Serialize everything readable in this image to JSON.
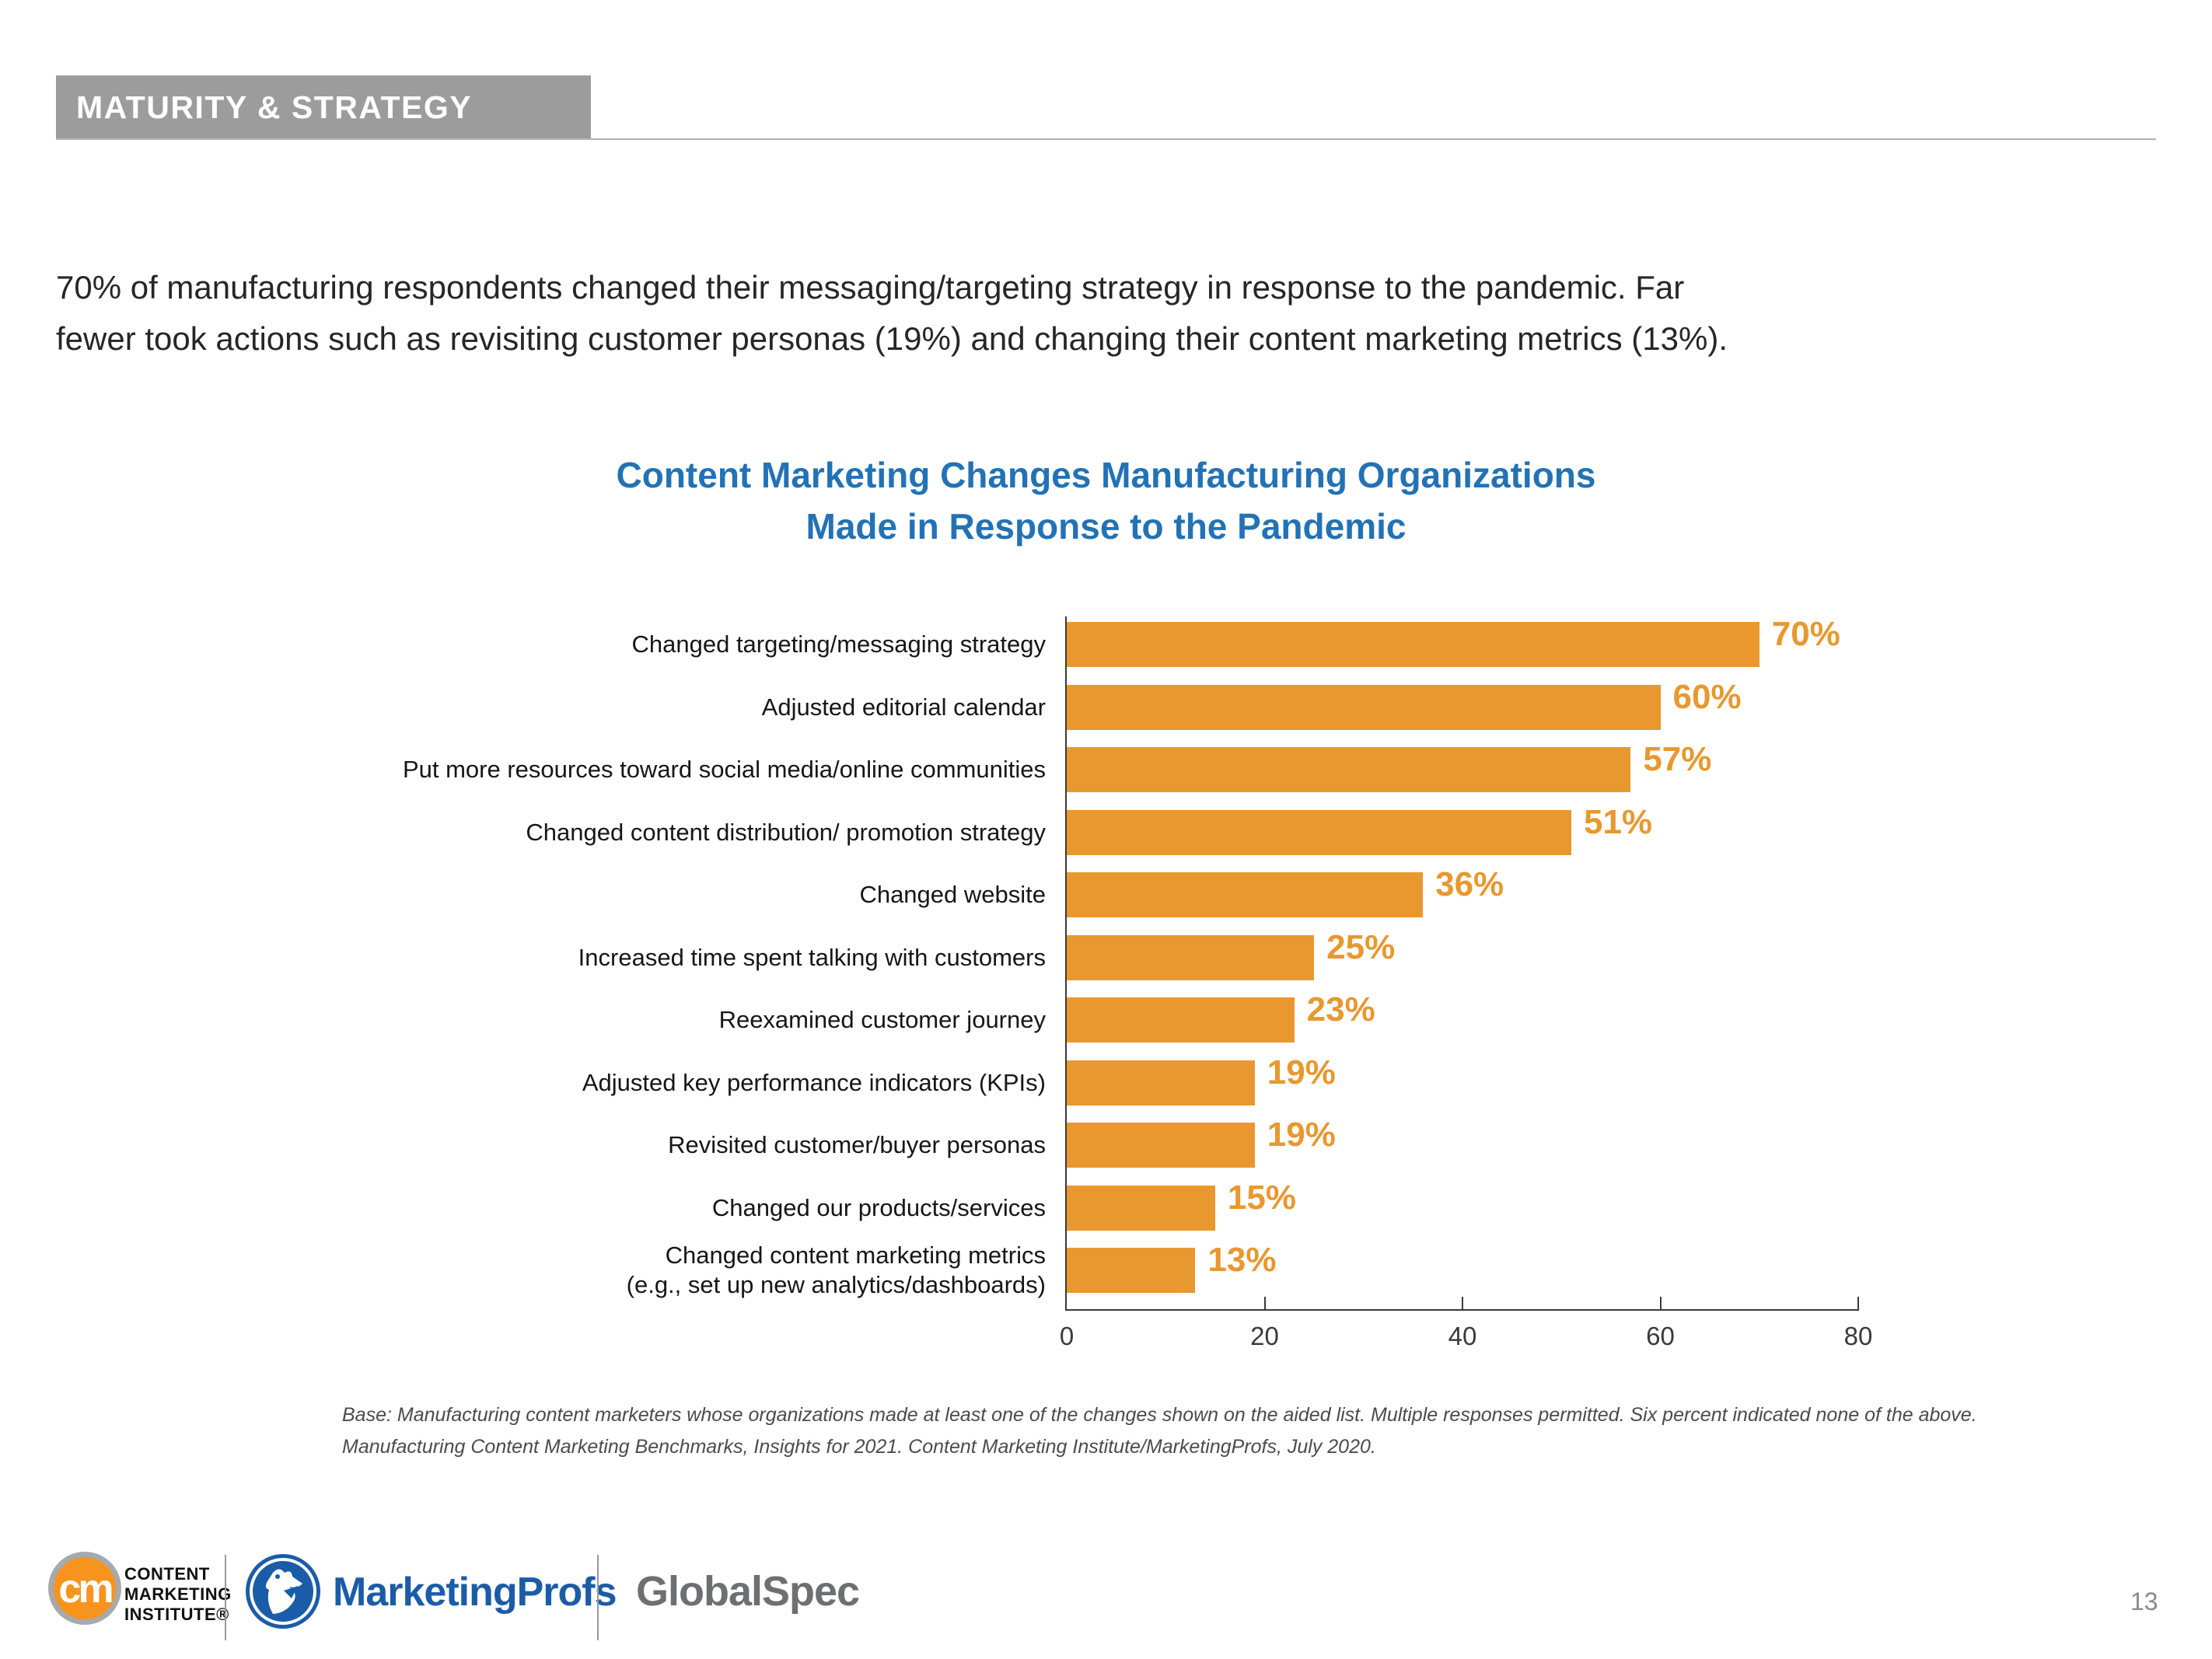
{
  "header": {
    "badge": "MATURITY & STRATEGY"
  },
  "intro": {
    "lines": [
      "70% of manufacturing respondents changed their messaging/targeting strategy in response to the pandemic. Far",
      "fewer took actions such as revisiting customer personas (19%) and changing their content marketing metrics (13%)."
    ]
  },
  "chart_data": {
    "type": "bar",
    "orientation": "horizontal",
    "title": "Content Marketing Changes Manufacturing Organizations Made in Response to the Pandemic",
    "title_lines": [
      "Content Marketing Changes Manufacturing Organizations",
      "Made in Response to the Pandemic"
    ],
    "categories": [
      "Changed targeting/messaging strategy",
      "Adjusted editorial calendar",
      "Put more resources toward social media/online communities",
      "Changed content distribution/ promotion strategy",
      "Changed website",
      "Increased time spent talking with customers",
      "Reexamined customer journey",
      "Adjusted key performance indicators (KPIs)",
      "Revisited customer/buyer personas",
      "Changed our products/services",
      "Changed content marketing metrics\n(e.g., set up new analytics/dashboards)"
    ],
    "values": [
      70,
      60,
      57,
      51,
      36,
      25,
      23,
      19,
      19,
      15,
      13
    ],
    "value_labels": [
      "70%",
      "60%",
      "57%",
      "51%",
      "36%",
      "25%",
      "23%",
      "19%",
      "19%",
      "15%",
      "13%"
    ],
    "xlabel": "",
    "ylabel": "",
    "xlim": [
      0,
      80
    ],
    "x_ticks": [
      0,
      20,
      40,
      60,
      80
    ],
    "grid": false,
    "legend": "none",
    "bar_color": "#E8982F",
    "title_color": "#2272B5"
  },
  "footnote": {
    "lines": [
      "Base: Manufacturing content marketers whose organizations made at least one of the changes shown on the aided list. Multiple responses permitted. Six percent indicated none of the above.",
      "Manufacturing Content Marketing Benchmarks, Insights for 2021. Content Marketing Institute/MarketingProfs, July 2020."
    ]
  },
  "footer": {
    "cmi_monogram": "cm",
    "cmi_lines": [
      "CONTENT",
      "MARKETING",
      "INSTITUTE®"
    ],
    "marketingprofs_label": "MarketingProfs",
    "globalspec_label": "GlobalSpec",
    "page_number": "13"
  },
  "colors": {
    "bar_orange": "#E8982F",
    "title_blue": "#2272B5",
    "badge_gray": "#9C9C9C",
    "cmi_orange": "#F7941E",
    "mp_blue": "#1B5CA8",
    "globalspec_gray": "#6E6F72",
    "axis_dark": "#3A3A3A"
  }
}
